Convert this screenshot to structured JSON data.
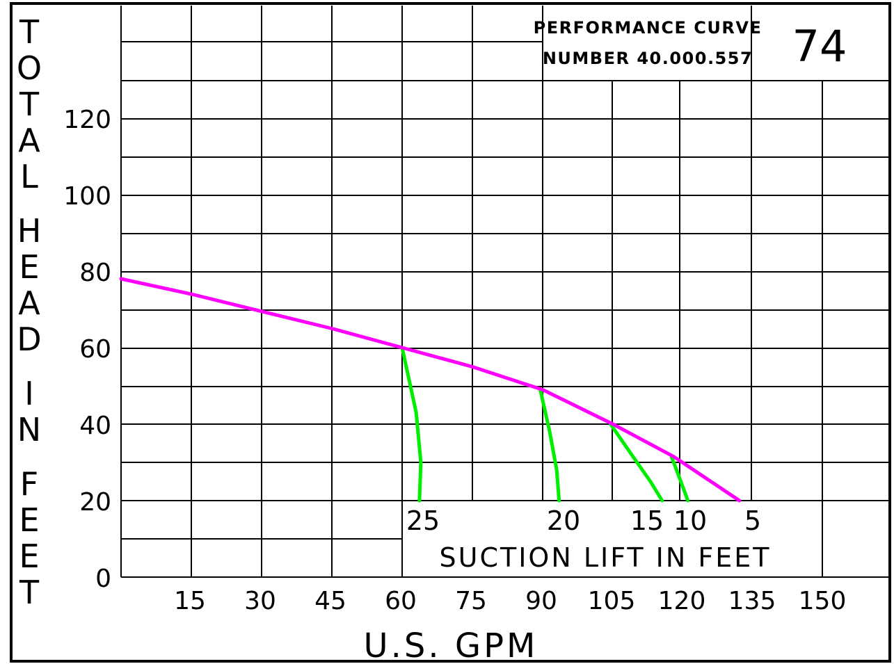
{
  "chart_data": {
    "type": "line",
    "ylabel": "TOTAL HEAD IN FEET",
    "xlabel": "U.S. GPM",
    "title_block": {
      "line1": "PERFORMANCE CURVE",
      "line2": "NUMBER 40.000.557",
      "curve_number": "74"
    },
    "x_ticks": [
      "15",
      "30",
      "45",
      "60",
      "75",
      "90",
      "105",
      "120",
      "135",
      "150"
    ],
    "y_ticks": [
      "0",
      "20",
      "40",
      "60",
      "80",
      "100",
      "120"
    ],
    "xlim": [
      0,
      165
    ],
    "ylim": [
      0,
      150
    ],
    "grid": true,
    "series": [
      {
        "color": "#ff00ff",
        "x": [
          0,
          15,
          30,
          45,
          60,
          75,
          90,
          105,
          118,
          132
        ],
        "y": [
          78,
          74,
          69.5,
          65,
          60,
          55,
          49,
          40,
          31.5,
          20
        ]
      }
    ],
    "suction_lift": {
      "label": "SUCTION LIFT IN FEET",
      "color": "#00ee00",
      "lines": [
        {
          "label": "25",
          "x": [
            60,
            63,
            64,
            63.7
          ],
          "y": [
            60,
            43,
            30,
            20
          ]
        },
        {
          "label": "20",
          "x": [
            89.5,
            91.5,
            93,
            93.5
          ],
          "y": [
            49,
            38,
            28,
            20
          ]
        },
        {
          "label": "15",
          "x": [
            104.5,
            109,
            113,
            115.5
          ],
          "y": [
            40,
            32,
            25,
            20
          ]
        },
        {
          "label": "10",
          "x": [
            117.5,
            119.5,
            121
          ],
          "y": [
            31.5,
            25,
            20
          ]
        },
        {
          "label": "5",
          "x": [],
          "y": []
        }
      ]
    }
  }
}
